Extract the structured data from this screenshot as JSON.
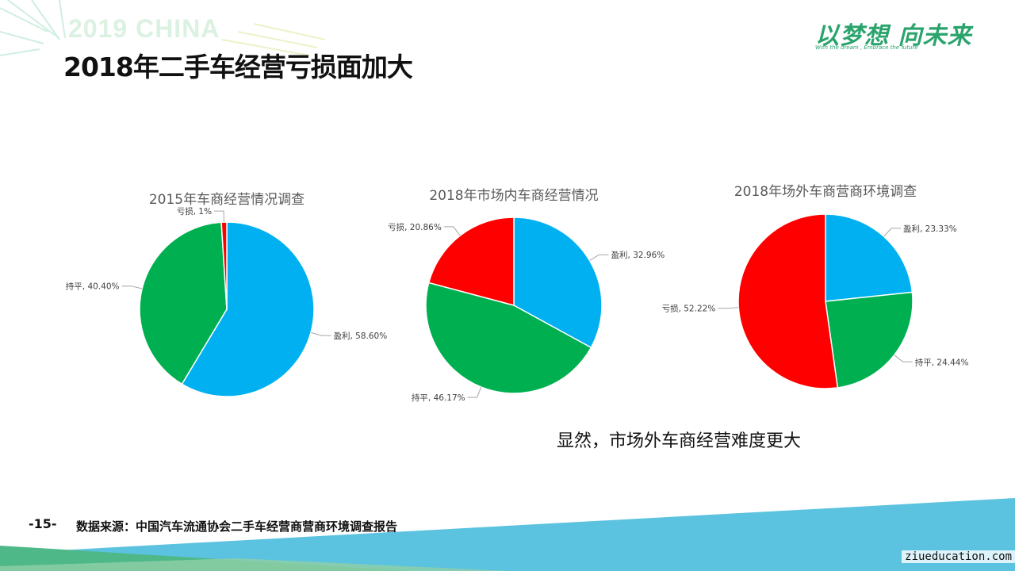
{
  "slide": {
    "title": "2018年二手车经营亏损面加大",
    "watermark": "2019 CHINA",
    "logo_main": "以梦想 向未来",
    "logo_sub": "With the dream , Embrace the future",
    "note": "显然，市场外车商经营难度更大",
    "page_number": "-15-",
    "source": "数据来源：中国汽车流通协会二手车经营商营商环境调查报告",
    "site": "ziueducation.com"
  },
  "colors": {
    "profit": "#00b0f0",
    "flat": "#00b050",
    "loss": "#ff0000",
    "brand": "#2aa36c"
  },
  "chart_data": [
    {
      "type": "pie",
      "title": "2015年车商经营情况调查",
      "slices": [
        {
          "label": "盈利",
          "value": 58.6,
          "text": "盈利, 58.60%"
        },
        {
          "label": "持平",
          "value": 40.4,
          "text": "持平, 40.40%"
        },
        {
          "label": "亏损",
          "value": 1.0,
          "text": "亏损, 1%"
        }
      ]
    },
    {
      "type": "pie",
      "title": "2018年市场内车商经营情况",
      "slices": [
        {
          "label": "盈利",
          "value": 32.96,
          "text": "盈利, 32.96%"
        },
        {
          "label": "持平",
          "value": 46.17,
          "text": "持平, 46.17%"
        },
        {
          "label": "亏损",
          "value": 20.86,
          "text": "亏损, 20.86%"
        }
      ]
    },
    {
      "type": "pie",
      "title": "2018年场外车商营商环境调查",
      "slices": [
        {
          "label": "盈利",
          "value": 23.33,
          "text": "盈利, 23.33%"
        },
        {
          "label": "持平",
          "value": 24.44,
          "text": "持平, 24.44%"
        },
        {
          "label": "亏损",
          "value": 52.22,
          "text": "亏损, 52.22%"
        }
      ]
    }
  ]
}
